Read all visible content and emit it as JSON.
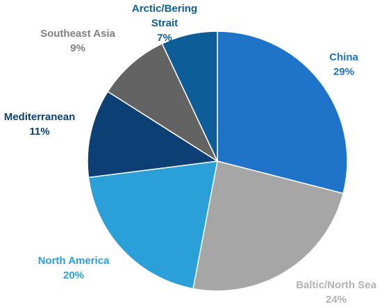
{
  "chart_data": {
    "type": "pie",
    "categories": [
      "China",
      "Baltic/North Sea",
      "North America",
      "Mediterranean",
      "Southeast Asia",
      "Arctic/Bering Strait"
    ],
    "values": [
      29,
      24,
      20,
      11,
      9,
      7
    ],
    "value_labels": [
      "29%",
      "24%",
      "20%",
      "11%",
      "9%",
      "7%"
    ],
    "colors": [
      "#1f73c8",
      "#a6a6a6",
      "#2a9fd8",
      "#0c3f73",
      "#636363",
      "#0d5e98"
    ],
    "label_colors": [
      "#1f73c8",
      "#b3b3b3",
      "#2a9fd8",
      "#0c3f73",
      "#808080",
      "#0d5e98"
    ]
  }
}
